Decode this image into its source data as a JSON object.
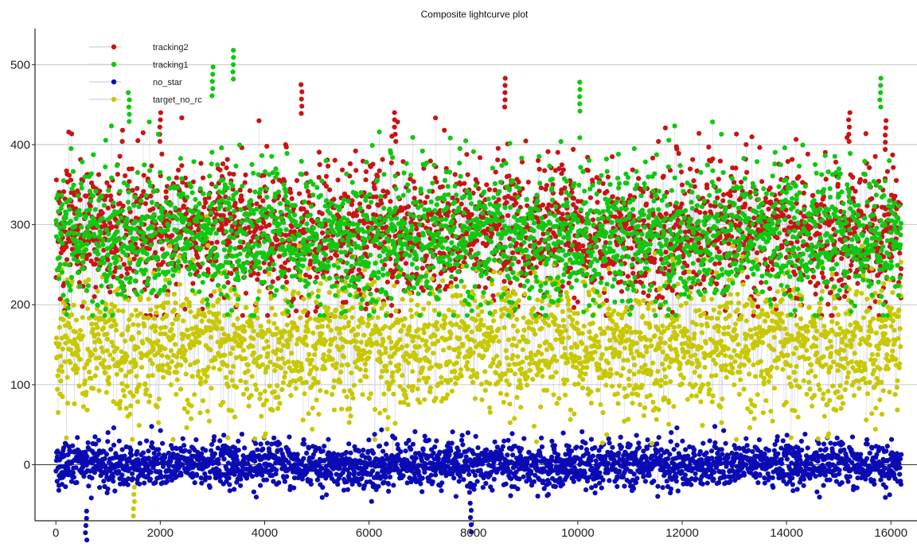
{
  "chart_data": {
    "type": "scatter",
    "title": "Composite lightcurve plot",
    "xlabel": "",
    "ylabel": "",
    "xlim": [
      -400,
      16500
    ],
    "ylim": [
      -70,
      545
    ],
    "xticks": [
      0,
      2000,
      4000,
      6000,
      8000,
      10000,
      12000,
      14000,
      16000
    ],
    "xtick_labels": [
      "0",
      "2000",
      "4000",
      "6000",
      "8000",
      "10000",
      "12000",
      "14000",
      "16000"
    ],
    "yticks": [
      0,
      100,
      200,
      300,
      400,
      500
    ],
    "ytick_labels": [
      "0",
      "100",
      "200",
      "300",
      "400",
      "500"
    ],
    "grid": "horizontal",
    "legend_position": "top-left",
    "n_points": 16200,
    "series": [
      {
        "name": "tracking2",
        "color": "#c81414",
        "typical_range": [
          200,
          420
        ],
        "center": 290,
        "spread": 45,
        "extremes": [
          {
            "x": 2000,
            "y": 440
          },
          {
            "x": 4700,
            "y": 475
          },
          {
            "x": 6500,
            "y": 440
          },
          {
            "x": 8600,
            "y": 483
          },
          {
            "x": 15200,
            "y": 440
          },
          {
            "x": 15900,
            "y": 430
          }
        ]
      },
      {
        "name": "tracking1",
        "color": "#10c810",
        "typical_range": [
          200,
          420
        ],
        "center": 285,
        "spread": 45,
        "extremes": [
          {
            "x": 3000,
            "y": 497
          },
          {
            "x": 3400,
            "y": 518
          },
          {
            "x": 10050,
            "y": 478
          },
          {
            "x": 15800,
            "y": 483
          },
          {
            "x": 1400,
            "y": 465
          }
        ]
      },
      {
        "name": "no_star",
        "color": "#0b0bb4",
        "typical_range": [
          -45,
          45
        ],
        "center": 0,
        "spread": 15,
        "extremes": [
          {
            "x": 580,
            "y": -58
          },
          {
            "x": 7950,
            "y": -48
          }
        ]
      },
      {
        "name": "target_no_rc",
        "color": "#c8c800",
        "typical_range": [
          40,
          260
        ],
        "center": 150,
        "spread": 45,
        "extremes": [
          {
            "x": 1500,
            "y": -28
          },
          {
            "x": 2900,
            "y": 310
          }
        ]
      }
    ]
  }
}
